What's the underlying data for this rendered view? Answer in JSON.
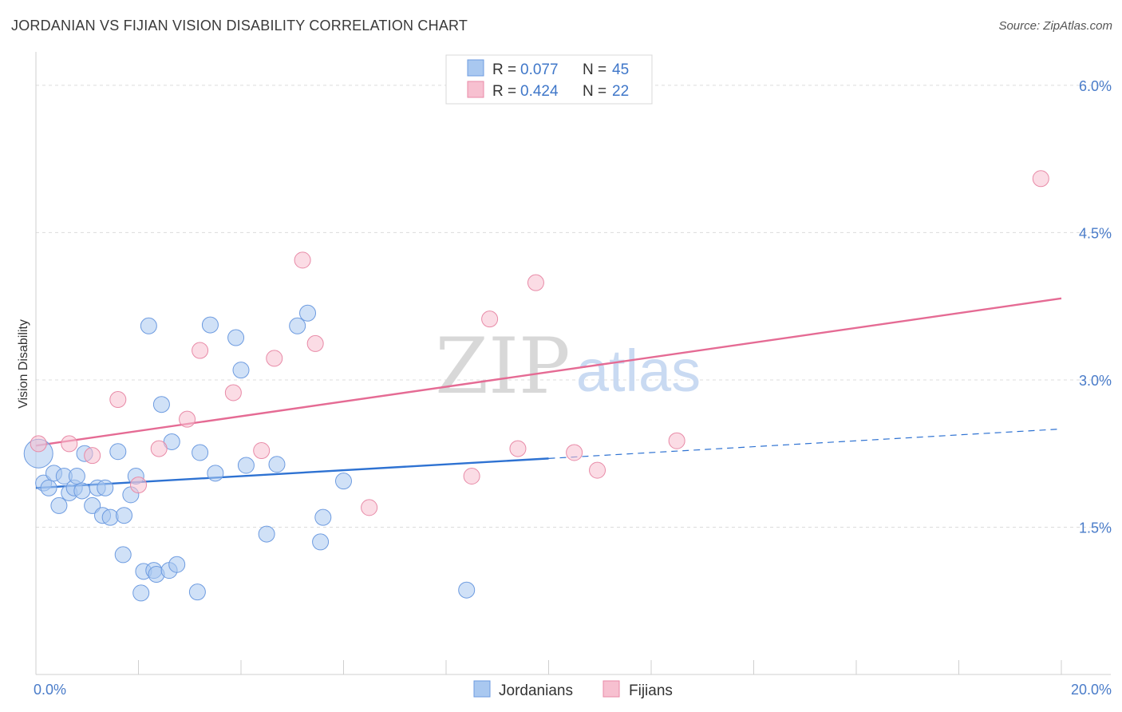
{
  "title": "JORDANIAN VS FIJIAN VISION DISABILITY CORRELATION CHART",
  "source": "Source: ZipAtlas.com",
  "watermark": {
    "zip": "ZIP",
    "atlas": "atlas"
  },
  "legend": {
    "r_label": "R =",
    "n_label": "N =",
    "rows": [
      {
        "r": "0.077",
        "n": "45",
        "color": "#a9c8f0",
        "stroke": "#6d9be0"
      },
      {
        "r": "0.424",
        "n": "22",
        "color": "#f7c0d0",
        "stroke": "#e88aa7"
      }
    ]
  },
  "chart_data": {
    "type": "scatter",
    "xlabel": "",
    "ylabel": "Vision Disability",
    "xlim": [
      0,
      20
    ],
    "ylim": [
      0,
      6.3
    ],
    "x_tick_labels": [
      "0.0%",
      "20.0%"
    ],
    "y_ticks": [
      1.5,
      3.0,
      4.5,
      6.0
    ],
    "y_tick_labels": [
      "1.5%",
      "3.0%",
      "4.5%",
      "6.0%"
    ],
    "grid": "horizontal dashed",
    "legend_position": "top-center",
    "series": [
      {
        "name": "Jordanians",
        "color": "#a9c8f0",
        "stroke": "#6d9be0",
        "line_color": "#2e72d2",
        "trend": {
          "x0": 0,
          "y0": 1.9,
          "x1": 10,
          "y1": 2.2,
          "x_ext": 20,
          "y_ext": 2.5
        },
        "points": [
          [
            0.05,
            2.25,
            18
          ],
          [
            0.15,
            1.95,
            10
          ],
          [
            0.25,
            1.9,
            10
          ],
          [
            0.35,
            2.05,
            10
          ],
          [
            0.45,
            1.72,
            10
          ],
          [
            0.55,
            2.02,
            10
          ],
          [
            0.65,
            1.85,
            10
          ],
          [
            0.75,
            1.9,
            10
          ],
          [
            0.8,
            2.02,
            10
          ],
          [
            0.9,
            1.87,
            10
          ],
          [
            0.95,
            2.25,
            10
          ],
          [
            1.1,
            1.72,
            10
          ],
          [
            1.2,
            1.9,
            10
          ],
          [
            1.3,
            1.62,
            10
          ],
          [
            1.35,
            1.9,
            10
          ],
          [
            1.45,
            1.6,
            10
          ],
          [
            1.6,
            2.27,
            10
          ],
          [
            1.7,
            1.22,
            10
          ],
          [
            1.72,
            1.62,
            10
          ],
          [
            1.85,
            1.83,
            10
          ],
          [
            1.95,
            2.02,
            10
          ],
          [
            2.05,
            0.83,
            10
          ],
          [
            2.1,
            1.05,
            10
          ],
          [
            2.2,
            3.55,
            10
          ],
          [
            2.3,
            1.06,
            10
          ],
          [
            2.35,
            1.02,
            10
          ],
          [
            2.45,
            2.75,
            10
          ],
          [
            2.6,
            1.06,
            10
          ],
          [
            2.65,
            2.37,
            10
          ],
          [
            2.75,
            1.12,
            10
          ],
          [
            3.15,
            0.84,
            10
          ],
          [
            3.2,
            2.26,
            10
          ],
          [
            3.4,
            3.56,
            10
          ],
          [
            3.5,
            2.05,
            10
          ],
          [
            3.9,
            3.43,
            10
          ],
          [
            4.0,
            3.1,
            10
          ],
          [
            4.1,
            2.13,
            10
          ],
          [
            4.5,
            1.43,
            10
          ],
          [
            4.7,
            2.14,
            10
          ],
          [
            5.1,
            3.55,
            10
          ],
          [
            5.3,
            3.68,
            10
          ],
          [
            5.55,
            1.35,
            10
          ],
          [
            5.6,
            1.6,
            10
          ],
          [
            6.0,
            1.97,
            10
          ],
          [
            8.4,
            0.86,
            10
          ]
        ]
      },
      {
        "name": "Fijians",
        "color": "#f7c0d0",
        "stroke": "#e88aa7",
        "line_color": "#e56b94",
        "trend": {
          "x0": 0,
          "y0": 2.33,
          "x1": 20,
          "y1": 3.83
        },
        "points": [
          [
            0.05,
            2.35,
            10
          ],
          [
            0.65,
            2.35,
            10
          ],
          [
            1.1,
            2.23,
            10
          ],
          [
            1.6,
            2.8,
            10
          ],
          [
            2.0,
            1.93,
            10
          ],
          [
            2.4,
            2.3,
            10
          ],
          [
            2.95,
            2.6,
            10
          ],
          [
            3.2,
            3.3,
            10
          ],
          [
            3.85,
            2.87,
            10
          ],
          [
            4.4,
            2.28,
            10
          ],
          [
            4.65,
            3.22,
            10
          ],
          [
            5.2,
            4.22,
            10
          ],
          [
            5.45,
            3.37,
            10
          ],
          [
            6.5,
            1.7,
            10
          ],
          [
            8.5,
            2.02,
            10
          ],
          [
            8.85,
            3.62,
            10
          ],
          [
            9.4,
            2.3,
            10
          ],
          [
            9.75,
            3.99,
            10
          ],
          [
            10.5,
            2.26,
            10
          ],
          [
            10.95,
            2.08,
            10
          ],
          [
            12.5,
            2.38,
            10
          ],
          [
            19.6,
            5.05,
            10
          ]
        ]
      }
    ]
  }
}
